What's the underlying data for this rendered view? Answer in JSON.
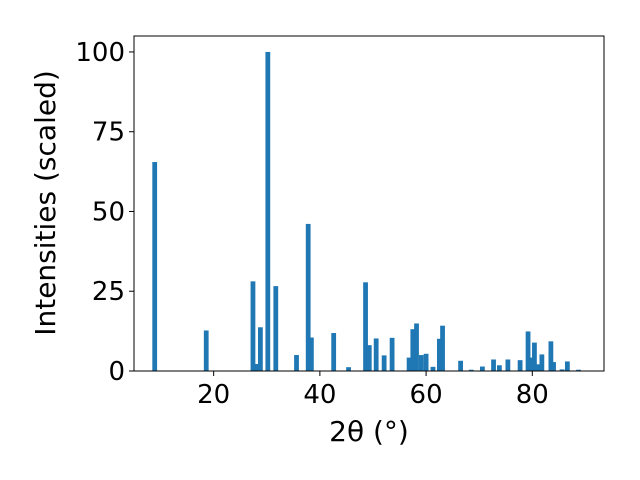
{
  "chart_data": {
    "type": "bar",
    "xlabel": "2θ (°)",
    "ylabel": "Intensities (scaled)",
    "xlim": [
      5,
      93.5
    ],
    "ylim": [
      0,
      105
    ],
    "xticks": [
      20,
      40,
      60,
      80
    ],
    "yticks": [
      0,
      25,
      50,
      75,
      100
    ],
    "grid": false,
    "bar_color": "#1f77b4",
    "bar_width": 0.9,
    "x": [
      8.9,
      18.6,
      27.4,
      28.0,
      28.8,
      30.2,
      31.7,
      35.6,
      37.8,
      38.4,
      42.6,
      45.4,
      48.6,
      49.3,
      50.6,
      52.1,
      53.6,
      56.8,
      57.5,
      58.2,
      59.1,
      60.0,
      61.3,
      62.5,
      63.1,
      66.5,
      68.5,
      70.6,
      72.7,
      73.8,
      75.4,
      77.7,
      79.2,
      79.8,
      80.4,
      81.1,
      81.8,
      83.5,
      84.0,
      85.6,
      86.6,
      88.7
    ],
    "values": [
      65.5,
      12.7,
      28.1,
      2.2,
      13.7,
      100.0,
      26.6,
      5.0,
      46.1,
      10.5,
      11.9,
      1.2,
      27.8,
      8.1,
      10.2,
      4.9,
      10.4,
      4.2,
      13.1,
      14.9,
      5.0,
      5.4,
      1.3,
      10.1,
      14.2,
      3.2,
      0.4,
      1.4,
      3.6,
      1.8,
      3.6,
      3.4,
      12.4,
      4.2,
      8.9,
      2.1,
      5.2,
      9.3,
      2.8,
      0.5,
      3.0,
      0.4
    ]
  }
}
